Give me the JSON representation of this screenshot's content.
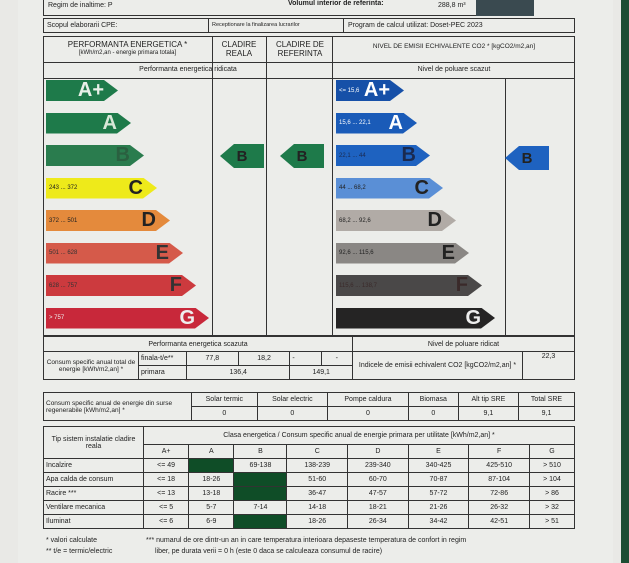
{
  "header": {
    "regim": "Regim de inaltime: P",
    "volum_label": "Volumul interior de referinta:",
    "volum": "288,8 m³"
  },
  "scope": {
    "label": "Scopul elaborarii CPE:",
    "value": "Receptionare la finalizarea lucrarilor",
    "program": "Program de calcul utilizat:  Doset-PEC 2023"
  },
  "cols": {
    "perf": "PERFORMANTA ENERGETICA *",
    "perf_unit": "[kWh/m2,an - energie primara totala]",
    "reala": "CLADIRE REALA",
    "ref": "CLADIRE DE REFERINTA",
    "co2": "NIVEL DE EMISII ECHIVALENTE CO2 * [kgCO2/m2,an]"
  },
  "perf_high": "Performanta energetica ridicata",
  "perf_low": "Performanta energetica scazuta",
  "poll_low": "Nivel de poluare scazut",
  "poll_high": "Nivel de poluare ridicat",
  "energy_scale": [
    {
      "letter": "A+",
      "range": "",
      "color": "#1e7a4a",
      "text": "#e8f0e8"
    },
    {
      "letter": "A",
      "range": "",
      "color": "#1e7a4a",
      "text": "#d8e8d8"
    },
    {
      "letter": "B",
      "range": "",
      "color": "#2a7c4e",
      "text": "#2a6040"
    },
    {
      "letter": "C",
      "range": "243 ... 372",
      "color": "#eeea1a",
      "text": "#222"
    },
    {
      "letter": "D",
      "range": "372 ... 501",
      "color": "#e48a3c",
      "text": "#222"
    },
    {
      "letter": "E",
      "range": "501 ... 628",
      "color": "#d55a4a",
      "text": "#333"
    },
    {
      "letter": "F",
      "range": "628 ... 757",
      "color": "#cc3a3e",
      "text": "#333"
    },
    {
      "letter": "G",
      "range": "> 757",
      "color": "#c8283a",
      "text": "#eee"
    }
  ],
  "co2_scale": [
    {
      "letter": "A+",
      "range": "<= 15,6",
      "color": "#1650a8",
      "text": "#fff"
    },
    {
      "letter": "A",
      "range": "15,6 ... 22,1",
      "color": "#1a5bb8",
      "text": "#fff"
    },
    {
      "letter": "B",
      "range": "22,1 ... 44",
      "color": "#1e62c0",
      "text": "#1a2a50"
    },
    {
      "letter": "C",
      "range": "44 ... 68,2",
      "color": "#5a8fd6",
      "text": "#222"
    },
    {
      "letter": "D",
      "range": "68,2 ... 92,6",
      "color": "#b1aba6",
      "text": "#222"
    },
    {
      "letter": "E",
      "range": "92,6 ... 115,6",
      "color": "#8a8784",
      "text": "#222"
    },
    {
      "letter": "F",
      "range": "115,6 ... 138,7",
      "color": "#4a4848",
      "text": "#3a2a2a"
    },
    {
      "letter": "G",
      "range": "",
      "color": "#252424",
      "text": "#eee"
    }
  ],
  "class_reala": "B",
  "class_ref": "B",
  "class_co2": "B",
  "indicator_colors": {
    "energy": "#1e7a4a",
    "co2": "#1e62c0"
  },
  "consum": {
    "label": "Consum specific anual total de energie [kWh/m2,an] *",
    "finala": "finala-t/e**",
    "primara": "primara",
    "reala_t": "77,8",
    "reala_e": "18,2",
    "ref_t": "-",
    "ref_e": "-",
    "reala_p": "136,4",
    "ref_p": "149,1"
  },
  "emisii": {
    "label": "Indicele de emisii echivalent CO2 [kgCO2/m2,an] *",
    "value": "22,3"
  },
  "sre": {
    "label": "Consum specific anual de energie din surse regenerabile [kWh/m2,an] *",
    "headers": [
      "Solar termic",
      "Solar electric",
      "Pompe caldura",
      "Biomasa",
      "Alt tip SRE",
      "Total SRE"
    ],
    "values": [
      "0",
      "0",
      "0",
      "0",
      "9,1",
      "9,1"
    ]
  },
  "systems": {
    "label": "Tip sistem instalatie cladire reala",
    "title": "Clasa energetica / Consum specific anual de energie primara per utilitate [kWh/m2,an] *",
    "classes": [
      "A+",
      "A",
      "B",
      "C",
      "D",
      "E",
      "F",
      "G"
    ],
    "rows": [
      {
        "name": "Incalzire",
        "cells": [
          "<= 49",
          "",
          "69-138",
          "138-239",
          "239-340",
          "340-425",
          "425-510",
          "> 510"
        ],
        "hl": 1
      },
      {
        "name": "Apa calda de consum",
        "cells": [
          "<= 18",
          "18-26",
          "",
          "51-60",
          "60-70",
          "70-87",
          "87-104",
          "> 104"
        ],
        "hl": 2
      },
      {
        "name": "Racire ***",
        "cells": [
          "<= 13",
          "13-18",
          "",
          "36-47",
          "47-57",
          "57-72",
          "72-86",
          "> 86"
        ],
        "hl": 2
      },
      {
        "name": "Ventilare mecanica",
        "cells": [
          "<= 5",
          "5-7",
          "7-14",
          "14-18",
          "18-21",
          "21-26",
          "26-32",
          "> 32"
        ],
        "hl": -1
      },
      {
        "name": "Iluminat",
        "cells": [
          "<= 6",
          "6-9",
          "",
          "18-26",
          "26-34",
          "34-42",
          "42-51",
          "> 51"
        ],
        "hl": 2
      }
    ]
  },
  "footnotes": {
    "n1": "* valori calculate",
    "n2": "** t/e = termic/electric",
    "n3": "*** numarul de ore dintr-un an in care temperatura interioara depaseste temperatura de confort in regim",
    "n4": "liber, pe durata verii = 0 h (este 0 daca se calculeaza consumul de racire)"
  }
}
